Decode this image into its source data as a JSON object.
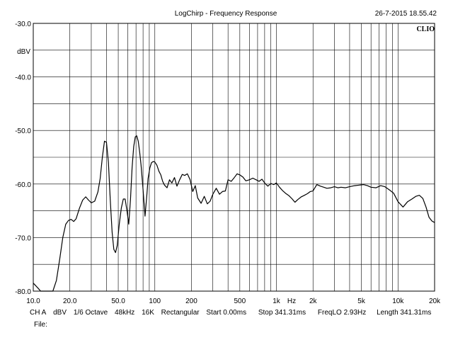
{
  "header": {
    "title": "LogChirp - Frequency Response",
    "timestamp": "26-7-2015 18.55.42",
    "brand": "CLIO"
  },
  "footer": {
    "channel": "CH A",
    "unit": "dBV",
    "smoothing": "1/6 Octave",
    "sample_rate": "48kHz",
    "fft_size": "16K",
    "window": "Rectangular",
    "start": "Start 0.00ms",
    "stop": "Stop 341.31ms",
    "freq_lo": "FreqLO 2.93Hz",
    "length": "Length 341.31ms",
    "file_label": "File:"
  },
  "chart_data": {
    "type": "line",
    "title": "LogChirp - Frequency Response",
    "xlabel": "Hz",
    "ylabel": "dBV",
    "x_scale": "log",
    "xlim": [
      10,
      20000
    ],
    "ylim": [
      -80,
      -30
    ],
    "y_ticks": [
      "-30.0",
      "-40.0",
      "-50.0",
      "-60.0",
      "-70.0",
      "-80.0"
    ],
    "x_ticks": [
      {
        "value": 10,
        "label": "10.0"
      },
      {
        "value": 20,
        "label": "20.0"
      },
      {
        "value": 50,
        "label": "50.0"
      },
      {
        "value": 100,
        "label": "100"
      },
      {
        "value": 200,
        "label": "200"
      },
      {
        "value": 500,
        "label": "500"
      },
      {
        "value": 1000,
        "label": "1k"
      },
      {
        "value": 2000,
        "label": "2k"
      },
      {
        "value": 5000,
        "label": "5k"
      },
      {
        "value": 10000,
        "label": "10k"
      },
      {
        "value": 20000,
        "label": "20k"
      }
    ],
    "grid": true,
    "series": [
      {
        "x": [
          10,
          11,
          11.5,
          12.5,
          13.5,
          14.5,
          15.5,
          16.5,
          17.5,
          18.5,
          19.5,
          20.5,
          21.5,
          22.5,
          24,
          25.5,
          27,
          28.5,
          30,
          32,
          34,
          35.5,
          37,
          38.5,
          40,
          41.5,
          43,
          44.5,
          46,
          47.5,
          49,
          51,
          53,
          55,
          57,
          59,
          61,
          63,
          65,
          67,
          69,
          71,
          73,
          75,
          77,
          80,
          83,
          86,
          88,
          91,
          94,
          97,
          100,
          104,
          108,
          112,
          116,
          120,
          126,
          132,
          138,
          145,
          152,
          160,
          168,
          176,
          185,
          195,
          205,
          215,
          225,
          240,
          255,
          270,
          285,
          300,
          320,
          340,
          360,
          380,
          400,
          425,
          450,
          475,
          500,
          530,
          560,
          600,
          640,
          680,
          720,
          760,
          800,
          850,
          900,
          950,
          1000,
          1060,
          1120,
          1200,
          1270,
          1350,
          1420,
          1500,
          1600,
          1700,
          1800,
          1900,
          2000,
          2150,
          2300,
          2450,
          2600,
          2800,
          3000,
          3200,
          3400,
          3700,
          4000,
          4400,
          4800,
          5200,
          5600,
          6000,
          6600,
          7200,
          7800,
          8500,
          9200,
          10000,
          11000,
          12000,
          13000,
          14000,
          15000,
          16000,
          17000,
          18000,
          19000,
          20000
        ],
        "y": [
          -78.5,
          -79.5,
          -80,
          -81,
          -81.5,
          -80.5,
          -78,
          -74,
          -70,
          -67.5,
          -66.8,
          -66.6,
          -67,
          -66.5,
          -64.5,
          -63,
          -62.4,
          -63,
          -63.5,
          -63.2,
          -61.5,
          -59,
          -55,
          -52,
          -52.2,
          -56,
          -63,
          -69,
          -72.2,
          -72.8,
          -71.5,
          -67.5,
          -64.5,
          -62.8,
          -62.8,
          -65,
          -67.5,
          -63,
          -57,
          -53,
          -51.2,
          -51,
          -52,
          -54,
          -56.5,
          -61,
          -66,
          -62,
          -59,
          -57,
          -56,
          -55.8,
          -55.9,
          -56.5,
          -57.6,
          -58.3,
          -59.5,
          -60.2,
          -60.7,
          -59.2,
          -59.8,
          -58.8,
          -60.4,
          -59.2,
          -58.2,
          -58.4,
          -58.1,
          -59.2,
          -61.4,
          -60.3,
          -62.6,
          -63.6,
          -62.3,
          -63.7,
          -63.2,
          -61.9,
          -60.8,
          -61.9,
          -61.4,
          -61.3,
          -59.2,
          -59.5,
          -58.8,
          -58.1,
          -58.3,
          -58.7,
          -59.4,
          -59.2,
          -58.9,
          -59.2,
          -59.5,
          -59.1,
          -59.8,
          -60.4,
          -59.9,
          -60.1,
          -59.8,
          -60.6,
          -61.2,
          -61.8,
          -62.2,
          -62.8,
          -63.4,
          -62.9,
          -62.4,
          -62.1,
          -61.8,
          -61.4,
          -61.3,
          -60.1,
          -60.4,
          -60.6,
          -60.8,
          -60.7,
          -60.5,
          -60.7,
          -60.6,
          -60.7,
          -60.5,
          -60.3,
          -60.2,
          -60.1,
          -60.3,
          -60.6,
          -60.7,
          -60.3,
          -60.5,
          -61.1,
          -61.7,
          -63.3,
          -64.3,
          -63.3,
          -62.8,
          -62.3,
          -62.1,
          -62.7,
          -64.3,
          -66.2,
          -66.9,
          -67.2
        ]
      }
    ]
  }
}
